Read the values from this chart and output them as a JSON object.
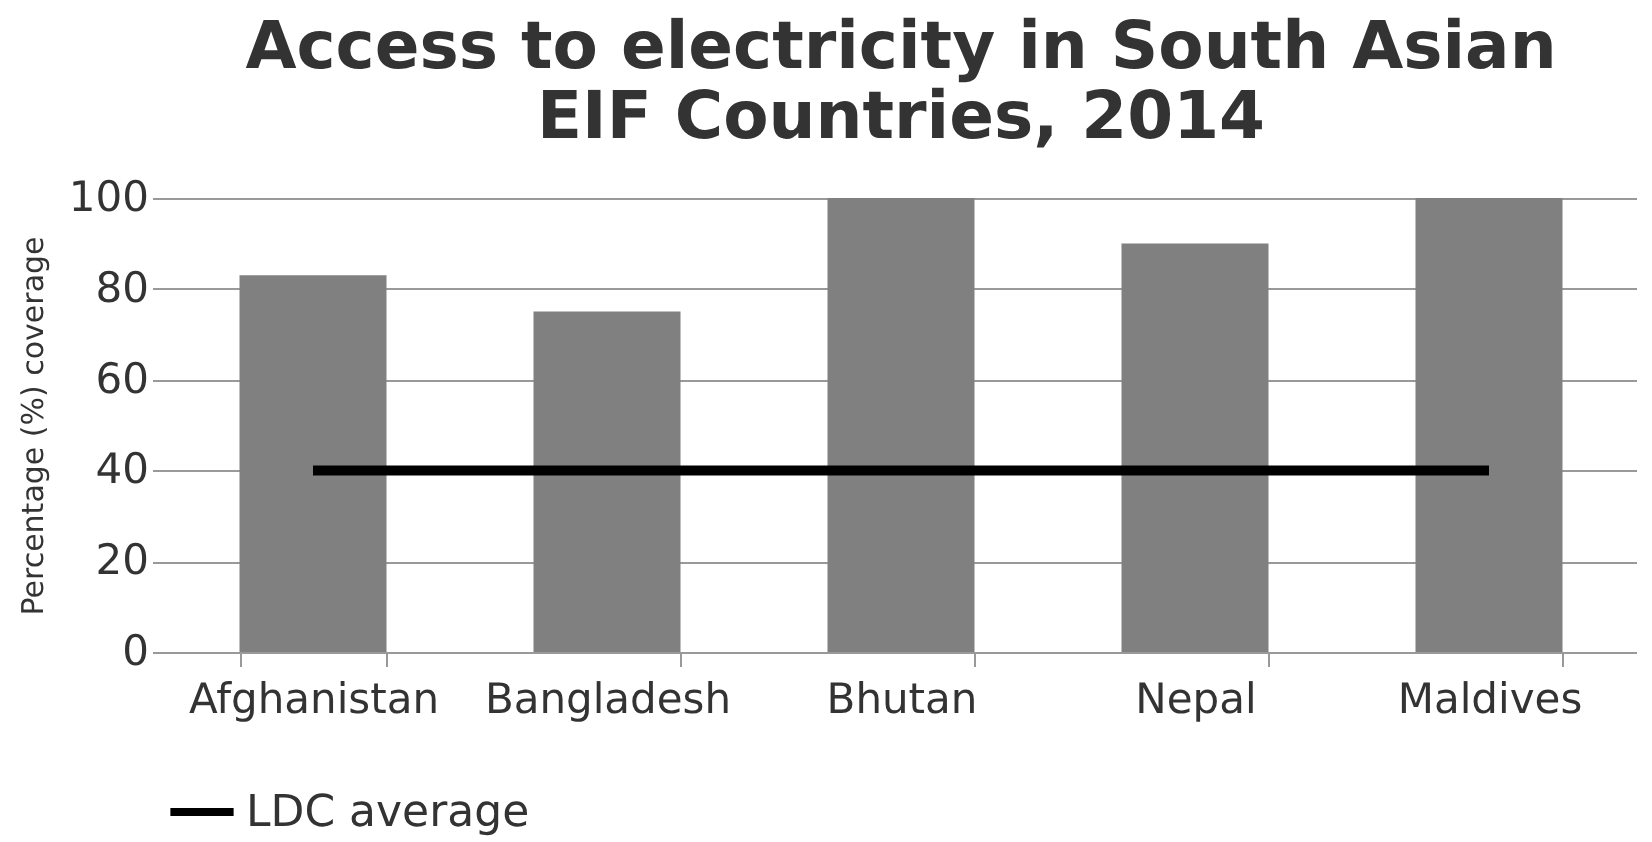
{
  "chart_data": {
    "type": "bar",
    "title": [
      "Access to electricity in South Asian",
      "EIF Countries, 2014"
    ],
    "ylabel": "Percentage (%) coverage",
    "categories": [
      "Afghanistan",
      "Bangladesh",
      "Bhutan",
      "Nepal",
      "Maldives"
    ],
    "series": [
      {
        "color": "#808080",
        "values": [
          83,
          75,
          100,
          90,
          100
        ]
      },
      {
        "type": "line",
        "name": "LDC average",
        "color": "#000000",
        "values": [
          40,
          40,
          40,
          40,
          40
        ]
      }
    ],
    "ylim": [
      0,
      100
    ],
    "yticks": [
      0,
      20,
      40,
      60,
      80,
      100
    ],
    "grid": "y",
    "legend": "bottom"
  }
}
